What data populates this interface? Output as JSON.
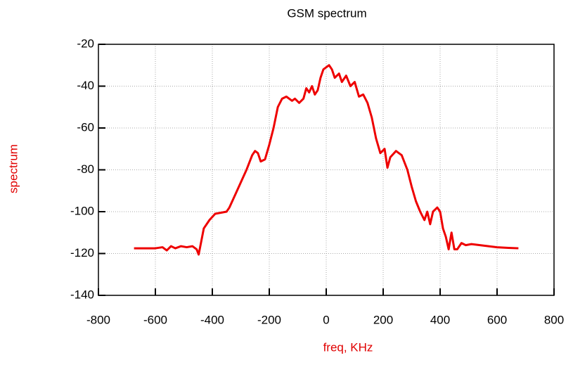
{
  "chart_data": {
    "type": "line",
    "title": "GSM spectrum",
    "xlabel": "freq, KHz",
    "ylabel": "spectrum",
    "xlim": [
      -800,
      800
    ],
    "xticks": [
      -800,
      -600,
      -400,
      -200,
      0,
      200,
      400,
      600,
      800
    ],
    "ylim": [
      -140,
      -20
    ],
    "yticks": [
      -140,
      -120,
      -100,
      -80,
      -60,
      -40,
      -20
    ],
    "grid": true,
    "x": [
      -675,
      -600,
      -575,
      -560,
      -545,
      -530,
      -510,
      -490,
      -470,
      -455,
      -448,
      -440,
      -430,
      -410,
      -390,
      -370,
      -350,
      -340,
      -320,
      -300,
      -280,
      -260,
      -250,
      -240,
      -230,
      -215,
      -200,
      -185,
      -170,
      -155,
      -140,
      -120,
      -110,
      -95,
      -80,
      -70,
      -60,
      -50,
      -40,
      -30,
      -20,
      -10,
      0,
      10,
      20,
      30,
      45,
      55,
      70,
      85,
      100,
      115,
      130,
      145,
      160,
      175,
      190,
      205,
      215,
      225,
      245,
      265,
      285,
      300,
      315,
      330,
      345,
      355,
      365,
      375,
      390,
      400,
      410,
      420,
      430,
      440,
      450,
      460,
      475,
      490,
      510,
      540,
      570,
      600,
      640,
      675
    ],
    "series": [
      {
        "name": "spectrum",
        "color": "#ee0000",
        "values": [
          -117.5,
          -117.5,
          -117,
          -118.5,
          -116.5,
          -117.5,
          -116.5,
          -117,
          -116.5,
          -118,
          -120.5,
          -115,
          -108,
          -104,
          -101,
          -100.5,
          -100,
          -98,
          -92,
          -86,
          -80,
          -73,
          -71,
          -72,
          -76,
          -75,
          -68,
          -60,
          -50,
          -46,
          -45,
          -47,
          -46,
          -48,
          -46,
          -41,
          -43,
          -40,
          -44,
          -42,
          -36,
          -32,
          -31,
          -30,
          -32,
          -36,
          -34,
          -38,
          -35,
          -40,
          -38,
          -45,
          -44,
          -48,
          -55,
          -65,
          -72,
          -70,
          -79,
          -74,
          -71,
          -73,
          -80,
          -88,
          -95,
          -100,
          -104,
          -100,
          -106,
          -100,
          -98,
          -100,
          -108,
          -112,
          -118,
          -110,
          -118,
          -118,
          -115,
          -116,
          -115.5,
          -116,
          -116.5,
          -117,
          -117.3,
          -117.5
        ]
      }
    ]
  }
}
